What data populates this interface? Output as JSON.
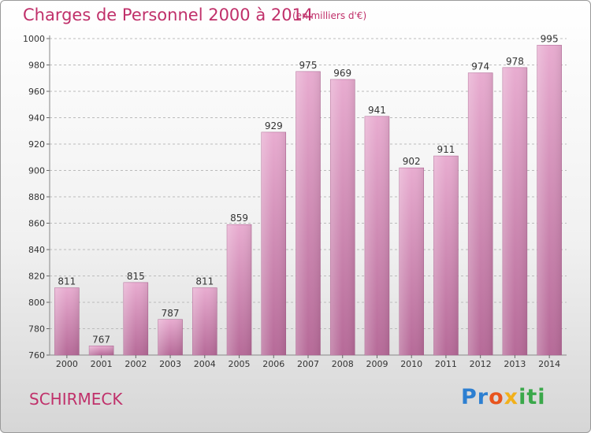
{
  "header": {
    "title": "Charges de Personnel 2000 à 2014",
    "subtitle": "(en milliers d'€)"
  },
  "footer": {
    "town": "SCHIRMECK",
    "logo_text": "Proxiti"
  },
  "colors": {
    "title": "#c0306a",
    "bar_top": "#e8acd0",
    "bar_bottom": "#b66a98",
    "grid": "#bbbbbb"
  },
  "chart_data": {
    "type": "bar",
    "title": "Charges de Personnel 2000 à 2014",
    "subtitle": "(en milliers d'€)",
    "categories": [
      "2000",
      "2001",
      "2002",
      "2003",
      "2004",
      "2005",
      "2006",
      "2007",
      "2008",
      "2009",
      "2010",
      "2011",
      "2012",
      "2013",
      "2014"
    ],
    "values": [
      811,
      767,
      815,
      787,
      811,
      859,
      929,
      975,
      969,
      941,
      902,
      911,
      974,
      978,
      995
    ],
    "ylim": [
      760,
      1000
    ],
    "yticks": [
      760,
      780,
      800,
      820,
      840,
      860,
      880,
      900,
      920,
      940,
      960,
      980,
      1000
    ],
    "grid": true,
    "data_labels": true
  }
}
